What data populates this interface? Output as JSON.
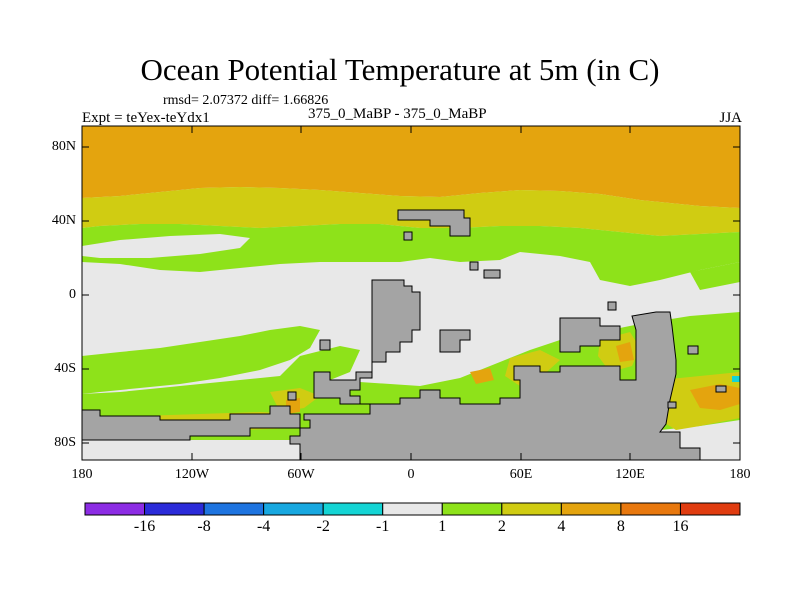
{
  "title": "Ocean Potential Temperature at 5m (in C)",
  "stats": "rmsd= 2.07372  diff= 1.66826",
  "left_label": "Expt = teYex-teYdx1",
  "center_label": "375_0_MaBP - 375_0_MaBP",
  "right_label": "JJA",
  "y_ticks": [
    "80N",
    "40N",
    "0",
    "40S",
    "80S"
  ],
  "x_ticks": [
    "180",
    "120W",
    "60W",
    "0",
    "60E",
    "120E",
    "180"
  ],
  "colorbar": {
    "colors": [
      "#8c2ce4",
      "#2b2bd9",
      "#1e74e0",
      "#18a8e0",
      "#14d4d4",
      "#e8e8e8",
      "#8ee21a",
      "#d0cc12",
      "#e4a40e",
      "#e8780e",
      "#e03c10"
    ],
    "labels": [
      "-16",
      "-8",
      "-4",
      "-2",
      "-1",
      "1",
      "2",
      "4",
      "8",
      "16"
    ]
  },
  "palette": {
    "land": "#a4a4a4",
    "near_zero": "#e8e8e8",
    "band_1_2": "#8ee21a",
    "band_2_4": "#d0cc12",
    "band_4_8": "#e4a40e",
    "band_8_16": "#e8780e",
    "band_neg": "#14d4d4"
  }
}
